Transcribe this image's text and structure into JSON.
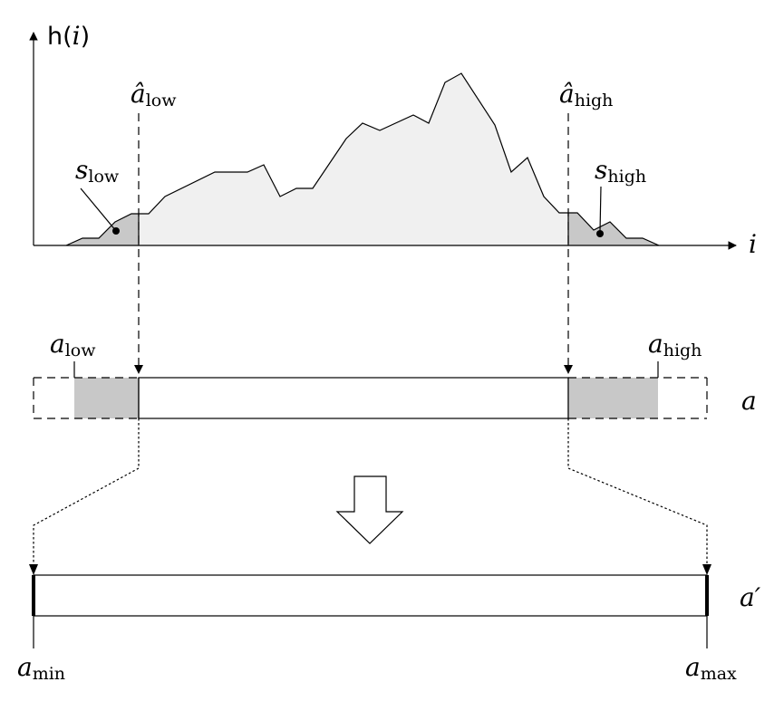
{
  "labels": {
    "y_axis": {
      "func": "h",
      "open": "(",
      "var": "i",
      "close": ")"
    },
    "x_axis": "i",
    "a_hat_low": {
      "base": "â",
      "sub": "low"
    },
    "a_hat_high": {
      "base": "â",
      "sub": "high"
    },
    "s_low": {
      "base": "s",
      "sub": "low"
    },
    "s_high": {
      "base": "s",
      "sub": "high"
    },
    "a_low": {
      "base": "a",
      "sub": "low"
    },
    "a_high": {
      "base": "a",
      "sub": "high"
    },
    "a": "a",
    "a_prime": "a′",
    "a_min": {
      "base": "a",
      "sub": "min"
    },
    "a_max": {
      "base": "a",
      "sub": "max"
    }
  },
  "colors": {
    "histogram_fill": "#f0f0f0",
    "tail_fill": "#c8c8c8",
    "bar_fill": "#f0f0f0",
    "stroke": "#000000"
  }
}
